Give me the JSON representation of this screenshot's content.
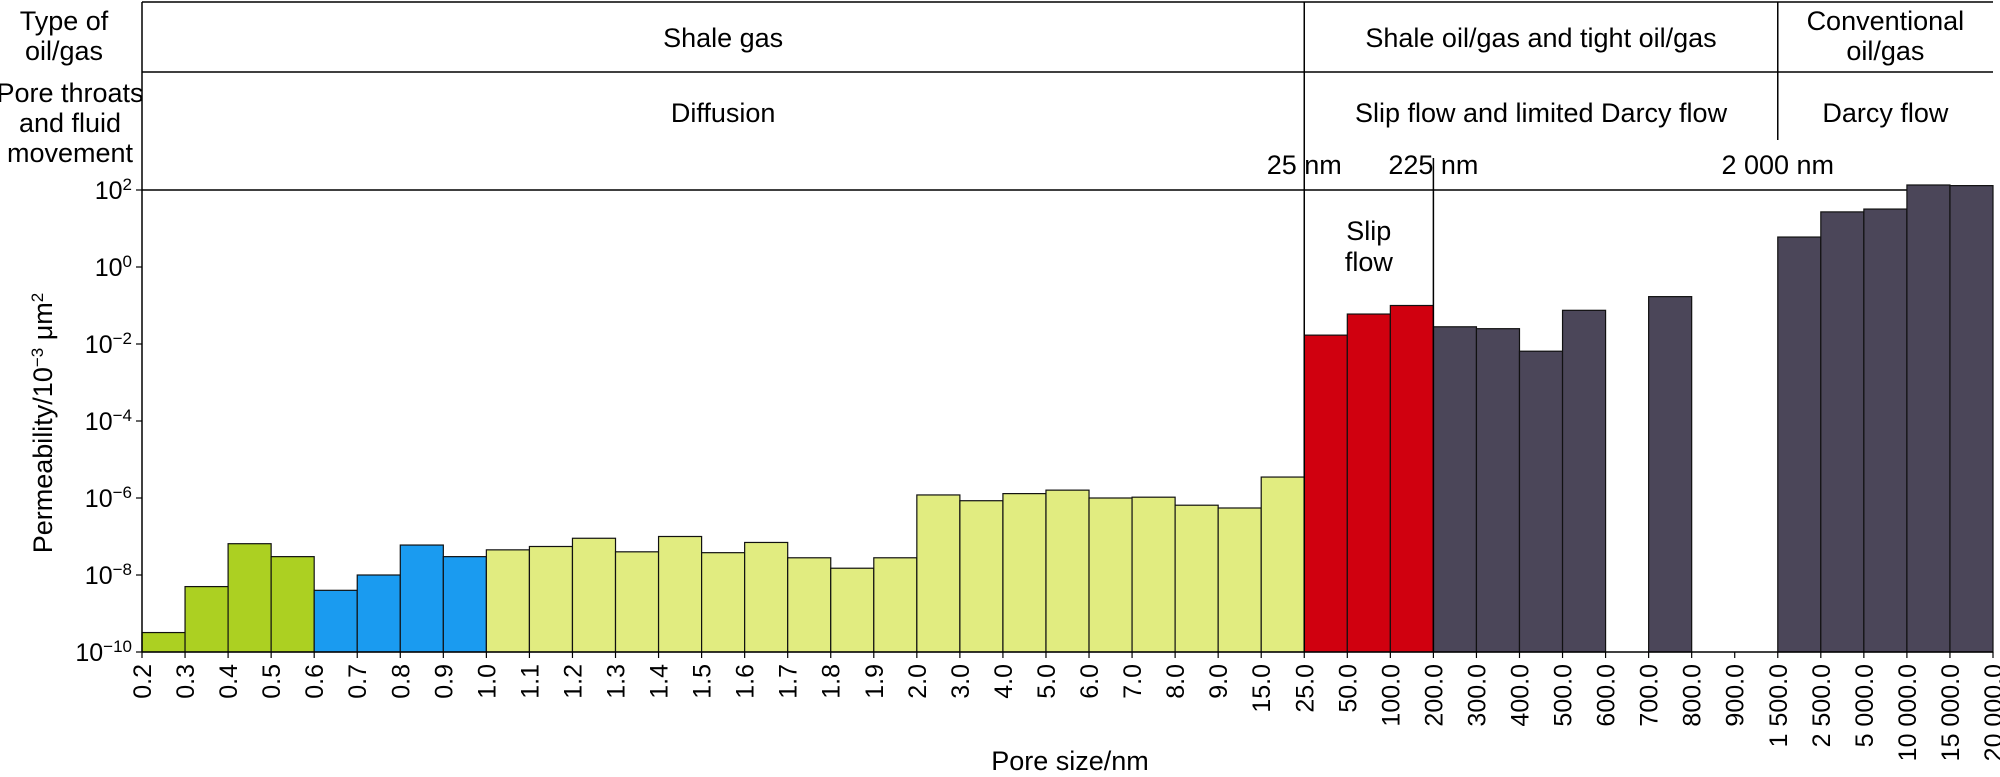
{
  "chart_data": {
    "type": "bar",
    "xlabel": "Pore size/nm",
    "ylabel": "Permeability/10",
    "ylabel_exp": "−3",
    "ylabel_unit": " μm",
    "ylabel_unit_exp": "2",
    "y_scale": "log",
    "ylim": [
      1e-10,
      100
    ],
    "y_ticks": [
      {
        "base": "10",
        "exp": "2",
        "value": 100
      },
      {
        "base": "10",
        "exp": "0",
        "value": 1
      },
      {
        "base": "10",
        "exp": "−2",
        "value": 0.01
      },
      {
        "base": "10",
        "exp": "−4",
        "value": 0.0001
      },
      {
        "base": "10",
        "exp": "−6",
        "value": 1e-06
      },
      {
        "base": "10",
        "exp": "−8",
        "value": 1e-08
      },
      {
        "base": "10",
        "exp": "−10",
        "value": 1e-10
      }
    ],
    "x_ticks": [
      "0.2",
      "0.3",
      "0.4",
      "0.5",
      "0.6",
      "0.7",
      "0.8",
      "0.9",
      "1.0",
      "1.1",
      "1.2",
      "1.3",
      "1.4",
      "1.5",
      "1.6",
      "1.7",
      "1.8",
      "1.9",
      "2.0",
      "3.0",
      "4.0",
      "5.0",
      "6.0",
      "7.0",
      "8.0",
      "9.0",
      "15.0",
      "25.0",
      "50.0",
      "100.0",
      "200.0",
      "300.0",
      "400.0",
      "500.0",
      "600.0",
      "700.0",
      "800.0",
      "900.0",
      "1 500.0",
      "2 500.0",
      "5 000.0",
      "10 000.0",
      "15 000.0",
      "20 000.0"
    ],
    "bars": [
      {
        "value": 3.2e-10,
        "color": "#acd022"
      },
      {
        "value": 5e-09,
        "color": "#acd022"
      },
      {
        "value": 6.5e-08,
        "color": "#acd022"
      },
      {
        "value": 3e-08,
        "color": "#acd022"
      },
      {
        "value": 4e-09,
        "color": "#1a9bf0"
      },
      {
        "value": 1e-08,
        "color": "#1a9bf0"
      },
      {
        "value": 6e-08,
        "color": "#1a9bf0"
      },
      {
        "value": 3e-08,
        "color": "#1a9bf0"
      },
      {
        "value": 4.5e-08,
        "color": "#e1ec80"
      },
      {
        "value": 5.5e-08,
        "color": "#e1ec80"
      },
      {
        "value": 9e-08,
        "color": "#e1ec80"
      },
      {
        "value": 4e-08,
        "color": "#e1ec80"
      },
      {
        "value": 1e-07,
        "color": "#e1ec80"
      },
      {
        "value": 3.8e-08,
        "color": "#e1ec80"
      },
      {
        "value": 7e-08,
        "color": "#e1ec80"
      },
      {
        "value": 2.8e-08,
        "color": "#e1ec80"
      },
      {
        "value": 1.5e-08,
        "color": "#e1ec80"
      },
      {
        "value": 2.8e-08,
        "color": "#e1ec80"
      },
      {
        "value": 1.2e-06,
        "color": "#e1ec80"
      },
      {
        "value": 8.5e-07,
        "color": "#e1ec80"
      },
      {
        "value": 1.3e-06,
        "color": "#e1ec80"
      },
      {
        "value": 1.6e-06,
        "color": "#e1ec80"
      },
      {
        "value": 1e-06,
        "color": "#e1ec80"
      },
      {
        "value": 1.05e-06,
        "color": "#e1ec80"
      },
      {
        "value": 6.5e-07,
        "color": "#e1ec80"
      },
      {
        "value": 5.5e-07,
        "color": "#e1ec80"
      },
      {
        "value": 3.5e-06,
        "color": "#e1ec80"
      },
      {
        "value": 0.017,
        "color": "#d0000f"
      },
      {
        "value": 0.06,
        "color": "#d0000f"
      },
      {
        "value": 0.1,
        "color": "#d0000f"
      },
      {
        "value": 0.028,
        "color": "#4b4659"
      },
      {
        "value": 0.025,
        "color": "#4b4659"
      },
      {
        "value": 0.0065,
        "color": "#4b4659"
      },
      {
        "value": 0.075,
        "color": "#4b4659"
      },
      {
        "value": null,
        "color": "#4b4659"
      },
      {
        "value": 0.17,
        "color": "#4b4659"
      },
      {
        "value": null,
        "color": "#4b4659"
      },
      {
        "value": null,
        "color": "#4b4659"
      },
      {
        "value": 6,
        "color": "#4b4659"
      },
      {
        "value": 27,
        "color": "#4b4659"
      },
      {
        "value": 32,
        "color": "#4b4659"
      },
      {
        "value": 135,
        "color": "#4b4659"
      },
      {
        "value": 130,
        "color": "#4b4659"
      }
    ],
    "markers": [
      {
        "label": "25 nm",
        "tick_index": 27
      },
      {
        "label": "225 nm",
        "tick_index": 30
      },
      {
        "label": "2 000 nm",
        "tick_index": 38
      }
    ],
    "slip_flow_label": [
      "Slip",
      "flow"
    ],
    "row_headers": {
      "type": [
        "Type of",
        "oil/gas"
      ],
      "pore": [
        "Pore throats",
        "and fluid",
        "movement"
      ]
    },
    "type_cells": [
      {
        "lines": [
          "Shale gas"
        ],
        "from": 0,
        "to": 27
      },
      {
        "lines": [
          "Shale oil/gas and tight oil/gas"
        ],
        "from": 27,
        "to": 38
      },
      {
        "lines": [
          "Conventional",
          "oil/gas"
        ],
        "from": 38,
        "to": 43
      }
    ],
    "pore_cells": [
      {
        "lines": [
          "Diffusion"
        ],
        "from": 0,
        "to": 27
      },
      {
        "lines": [
          "Slip flow and limited Darcy flow"
        ],
        "from": 27,
        "to": 38
      },
      {
        "lines": [
          "Darcy flow"
        ],
        "from": 38,
        "to": 43
      }
    ]
  }
}
